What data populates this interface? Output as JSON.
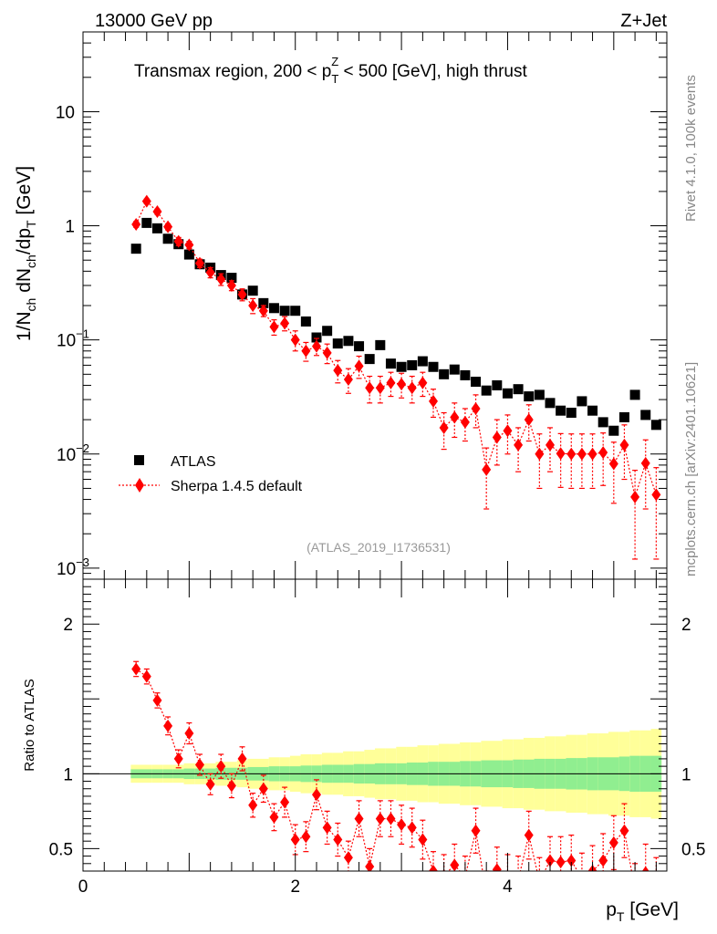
{
  "header": {
    "left": "13000 GeV pp",
    "right": "Z+Jet"
  },
  "side_labels": {
    "rivet": "Rivet 4.1.0,  100k events",
    "mcplots": "mcplots.cern.ch [arXiv:2401.10621]"
  },
  "chart_data": {
    "type": "scatter",
    "title_parts": {
      "pre": "Transmax region, 200 < p",
      "sub": "T",
      "sup": "Z",
      "post": " < 500 [GeV], high thrust"
    },
    "analysis_tag": "(ATLAS_2019_I1736531)",
    "xlabel": {
      "main": "p",
      "sub": "T",
      "unit": " [GeV]"
    },
    "ylabel_main": {
      "a": "1/N",
      "b": "ch",
      "c": " dN",
      "d": "ch",
      "e": "/dp",
      "f": "T",
      "g": " [GeV]"
    },
    "ylabel_ratio": "Ratio to ATLAS",
    "xlim": [
      0,
      5.5
    ],
    "ylim_main": [
      0.0008,
      50
    ],
    "ylim_ratio": [
      0.35,
      2.3
    ],
    "x_ticks": [
      0,
      2,
      4
    ],
    "y_ticks_main": [
      {
        "value": 10,
        "label": "10",
        "sup": ""
      },
      {
        "value": 1,
        "label": "1",
        "sup": ""
      },
      {
        "value": 0.1,
        "label": "10",
        "sup": "−1"
      },
      {
        "value": 0.01,
        "label": "10",
        "sup": "−2"
      },
      {
        "value": 0.001,
        "label": "10",
        "sup": "−3"
      }
    ],
    "y_ticks_ratio": [
      0.5,
      1,
      2
    ],
    "bin_width": 0.1,
    "x": [
      0.5,
      0.6,
      0.7,
      0.8,
      0.9,
      1.0,
      1.1,
      1.2,
      1.3,
      1.4,
      1.5,
      1.6,
      1.7,
      1.8,
      1.9,
      2.0,
      2.1,
      2.2,
      2.3,
      2.4,
      2.5,
      2.6,
      2.7,
      2.8,
      2.9,
      3.0,
      3.1,
      3.2,
      3.3,
      3.4,
      3.5,
      3.6,
      3.7,
      3.8,
      3.9,
      4.0,
      4.1,
      4.2,
      4.3,
      4.4,
      4.5,
      4.6,
      4.7,
      4.8,
      4.9,
      5.0,
      5.1,
      5.2,
      5.3,
      5.4
    ],
    "series": [
      {
        "name": "ATLAS",
        "color": "#000000",
        "marker": "square",
        "values": [
          0.63,
          1.06,
          0.95,
          0.77,
          0.69,
          0.56,
          0.46,
          0.43,
          0.37,
          0.35,
          0.25,
          0.27,
          0.21,
          0.19,
          0.18,
          0.18,
          0.145,
          0.105,
          0.12,
          0.093,
          0.098,
          0.088,
          0.068,
          0.09,
          0.062,
          0.058,
          0.06,
          0.065,
          0.058,
          0.05,
          0.055,
          0.049,
          0.043,
          0.036,
          0.04,
          0.034,
          0.037,
          0.032,
          0.033,
          0.028,
          0.024,
          0.023,
          0.029,
          0.024,
          0.019,
          0.016,
          0.021,
          0.033,
          0.022,
          0.018
        ]
      },
      {
        "name": "Sherpa 1.4.5 default",
        "color": "#ff0000",
        "marker": "diamond",
        "values": [
          1.03,
          1.64,
          1.33,
          0.98,
          0.73,
          0.68,
          0.47,
          0.39,
          0.34,
          0.3,
          0.25,
          0.2,
          0.18,
          0.13,
          0.14,
          0.1,
          0.08,
          0.088,
          0.077,
          0.054,
          0.045,
          0.059,
          0.038,
          0.038,
          0.042,
          0.041,
          0.038,
          0.042,
          0.029,
          0.017,
          0.021,
          0.019,
          0.025,
          0.0073,
          0.014,
          0.016,
          0.012,
          0.02,
          0.01,
          0.012,
          0.0101,
          0.01,
          0.01,
          0.01,
          0.0103,
          0.0082,
          0.012,
          0.0042,
          0.0083,
          0.0044
        ],
        "err_lo": [
          0.06,
          0.08,
          0.07,
          0.06,
          0.06,
          0.05,
          0.04,
          0.04,
          0.04,
          0.03,
          0.03,
          0.03,
          0.02,
          0.02,
          0.02,
          0.02,
          0.015,
          0.015,
          0.015,
          0.012,
          0.011,
          0.013,
          0.01,
          0.01,
          0.01,
          0.01,
          0.01,
          0.01,
          0.008,
          0.006,
          0.007,
          0.006,
          0.008,
          0.004,
          0.006,
          0.006,
          0.005,
          0.007,
          0.005,
          0.005,
          0.005,
          0.005,
          0.005,
          0.005,
          0.005,
          0.0045,
          0.006,
          0.003,
          0.005,
          0.0032
        ],
        "err_hi": [
          0.06,
          0.08,
          0.07,
          0.06,
          0.06,
          0.05,
          0.04,
          0.04,
          0.04,
          0.03,
          0.03,
          0.03,
          0.02,
          0.02,
          0.02,
          0.02,
          0.015,
          0.015,
          0.015,
          0.012,
          0.011,
          0.013,
          0.01,
          0.01,
          0.01,
          0.01,
          0.01,
          0.01,
          0.008,
          0.006,
          0.007,
          0.006,
          0.008,
          0.004,
          0.006,
          0.006,
          0.005,
          0.007,
          0.005,
          0.005,
          0.005,
          0.005,
          0.005,
          0.005,
          0.005,
          0.0045,
          0.006,
          0.003,
          0.005,
          0.0032
        ]
      }
    ],
    "ratio_values": [
      1.7,
      1.65,
      1.49,
      1.32,
      1.1,
      1.27,
      1.06,
      0.93,
      1.05,
      0.92,
      1.1,
      0.79,
      0.9,
      0.71,
      0.81,
      0.56,
      0.58,
      0.86,
      0.64,
      0.56,
      0.44,
      0.7,
      0.38,
      0.7,
      0.7,
      0.66,
      0.64,
      0.56,
      0.35,
      0.32,
      0.39,
      0.31,
      0.62,
      0.2,
      0.36,
      0.31,
      0.29,
      0.59,
      0.28,
      0.42,
      0.41,
      0.42,
      0.3,
      0.35,
      0.42,
      0.54,
      0.62,
      0.22,
      0.34,
      0.25
    ],
    "ratio_err_lo": [
      0.05,
      0.05,
      0.05,
      0.06,
      0.06,
      0.07,
      0.07,
      0.07,
      0.08,
      0.08,
      0.08,
      0.08,
      0.09,
      0.09,
      0.1,
      0.1,
      0.1,
      0.1,
      0.11,
      0.11,
      0.11,
      0.12,
      0.12,
      0.12,
      0.12,
      0.13,
      0.13,
      0.13,
      0.13,
      0.14,
      0.14,
      0.14,
      0.15,
      0.15,
      0.15,
      0.15,
      0.16,
      0.16,
      0.16,
      0.16,
      0.17,
      0.17,
      0.17,
      0.17,
      0.18,
      0.18,
      0.18,
      0.18,
      0.19,
      0.19
    ],
    "ratio_err_hi": [
      0.05,
      0.05,
      0.05,
      0.06,
      0.06,
      0.07,
      0.07,
      0.07,
      0.08,
      0.08,
      0.08,
      0.08,
      0.09,
      0.09,
      0.1,
      0.1,
      0.1,
      0.1,
      0.11,
      0.11,
      0.11,
      0.12,
      0.12,
      0.12,
      0.12,
      0.13,
      0.13,
      0.13,
      0.13,
      0.14,
      0.14,
      0.14,
      0.15,
      0.15,
      0.15,
      0.15,
      0.16,
      0.16,
      0.16,
      0.16,
      0.17,
      0.17,
      0.17,
      0.17,
      0.18,
      0.18,
      0.18,
      0.18,
      0.19,
      0.19
    ],
    "band_inner_halfwidth": [
      0.03,
      0.03,
      0.03,
      0.03,
      0.03,
      0.035,
      0.035,
      0.035,
      0.04,
      0.04,
      0.04,
      0.045,
      0.045,
      0.05,
      0.05,
      0.05,
      0.055,
      0.055,
      0.06,
      0.06,
      0.06,
      0.065,
      0.065,
      0.07,
      0.07,
      0.07,
      0.075,
      0.075,
      0.08,
      0.08,
      0.08,
      0.085,
      0.085,
      0.09,
      0.09,
      0.09,
      0.095,
      0.095,
      0.1,
      0.1,
      0.1,
      0.105,
      0.105,
      0.11,
      0.11,
      0.11,
      0.115,
      0.12,
      0.12,
      0.12
    ],
    "band_outer_halfwidth": [
      0.06,
      0.06,
      0.06,
      0.06,
      0.06,
      0.07,
      0.07,
      0.07,
      0.08,
      0.08,
      0.09,
      0.1,
      0.1,
      0.11,
      0.11,
      0.12,
      0.13,
      0.13,
      0.14,
      0.14,
      0.15,
      0.15,
      0.16,
      0.17,
      0.17,
      0.18,
      0.18,
      0.19,
      0.19,
      0.2,
      0.2,
      0.21,
      0.21,
      0.22,
      0.22,
      0.23,
      0.23,
      0.24,
      0.24,
      0.25,
      0.25,
      0.26,
      0.26,
      0.27,
      0.27,
      0.28,
      0.28,
      0.29,
      0.29,
      0.3
    ],
    "band_colors": {
      "inner": "#90ee90",
      "outer": "#ffff99"
    },
    "legend_position": "lower-left"
  }
}
